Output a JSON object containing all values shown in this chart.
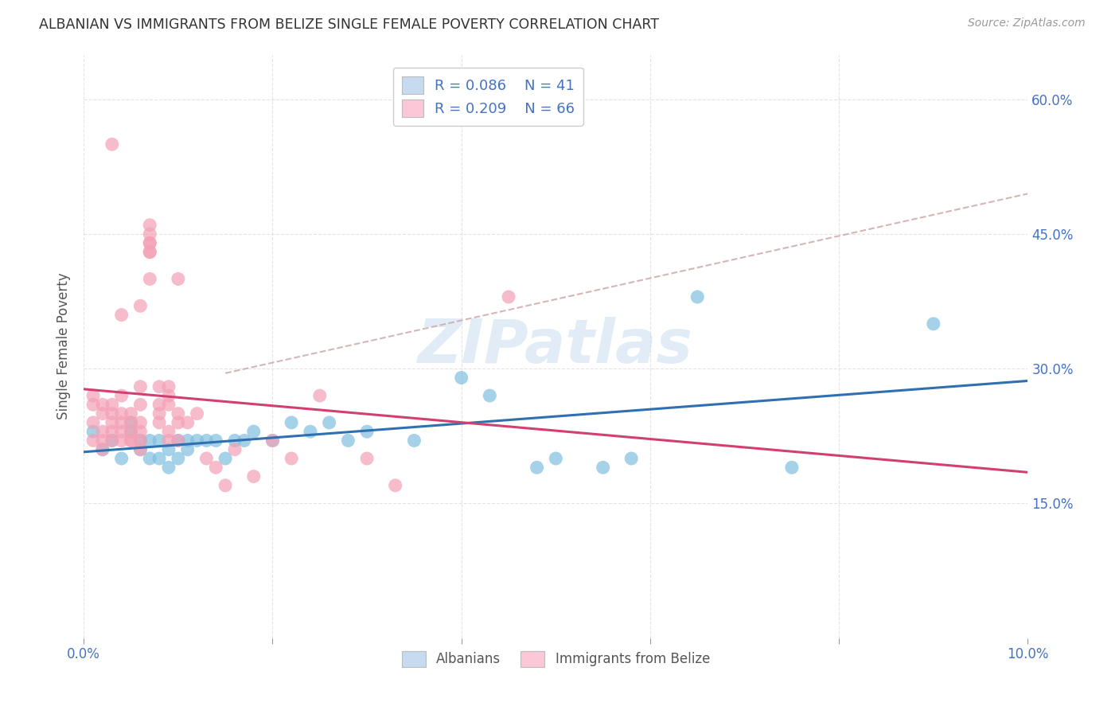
{
  "title": "ALBANIAN VS IMMIGRANTS FROM BELIZE SINGLE FEMALE POVERTY CORRELATION CHART",
  "source": "Source: ZipAtlas.com",
  "ylabel": "Single Female Poverty",
  "watermark": "ZIPatlas",
  "xlim": [
    0.0,
    0.1
  ],
  "ylim": [
    0.0,
    0.65
  ],
  "xticks": [
    0.0,
    0.02,
    0.04,
    0.06,
    0.08,
    0.1
  ],
  "xticklabels": [
    "0.0%",
    "",
    "",
    "",
    "",
    "10.0%"
  ],
  "yticks": [
    0.0,
    0.15,
    0.3,
    0.45,
    0.6
  ],
  "yticklabels_right": [
    "",
    "15.0%",
    "30.0%",
    "45.0%",
    "60.0%"
  ],
  "legend_labels": [
    "Albanians",
    "Immigrants from Belize"
  ],
  "legend_R": [
    "R = 0.086",
    "R = 0.209"
  ],
  "legend_N": [
    "N = 41",
    "N = 66"
  ],
  "blue_color": "#7fbfdf",
  "pink_color": "#f4a0b5",
  "blue_line_color": "#3070b0",
  "pink_line_color": "#d04070",
  "blue_fill": "#c6dbef",
  "pink_fill": "#fcc8d8",
  "albanians_x": [
    0.001,
    0.002,
    0.003,
    0.004,
    0.005,
    0.005,
    0.006,
    0.006,
    0.007,
    0.007,
    0.008,
    0.008,
    0.009,
    0.009,
    0.01,
    0.01,
    0.011,
    0.011,
    0.012,
    0.013,
    0.014,
    0.015,
    0.016,
    0.017,
    0.018,
    0.02,
    0.022,
    0.024,
    0.026,
    0.028,
    0.03,
    0.035,
    0.04,
    0.043,
    0.048,
    0.05,
    0.055,
    0.058,
    0.065,
    0.075,
    0.09
  ],
  "albanians_y": [
    0.23,
    0.21,
    0.22,
    0.2,
    0.23,
    0.24,
    0.22,
    0.21,
    0.22,
    0.2,
    0.22,
    0.2,
    0.19,
    0.21,
    0.2,
    0.22,
    0.22,
    0.21,
    0.22,
    0.22,
    0.22,
    0.2,
    0.22,
    0.22,
    0.23,
    0.22,
    0.24,
    0.23,
    0.24,
    0.22,
    0.23,
    0.22,
    0.29,
    0.27,
    0.19,
    0.2,
    0.19,
    0.2,
    0.38,
    0.19,
    0.35
  ],
  "belize_x": [
    0.001,
    0.001,
    0.001,
    0.001,
    0.002,
    0.002,
    0.002,
    0.002,
    0.002,
    0.003,
    0.003,
    0.003,
    0.003,
    0.003,
    0.004,
    0.004,
    0.004,
    0.004,
    0.004,
    0.005,
    0.005,
    0.005,
    0.005,
    0.005,
    0.006,
    0.006,
    0.006,
    0.006,
    0.006,
    0.006,
    0.007,
    0.007,
    0.007,
    0.007,
    0.007,
    0.007,
    0.008,
    0.008,
    0.008,
    0.008,
    0.009,
    0.009,
    0.009,
    0.009,
    0.009,
    0.01,
    0.01,
    0.01,
    0.011,
    0.012,
    0.013,
    0.014,
    0.015,
    0.016,
    0.018,
    0.02,
    0.022,
    0.025,
    0.03,
    0.033,
    0.003,
    0.004,
    0.006,
    0.007,
    0.01,
    0.045
  ],
  "belize_y": [
    0.22,
    0.24,
    0.27,
    0.26,
    0.21,
    0.22,
    0.26,
    0.23,
    0.25,
    0.22,
    0.23,
    0.25,
    0.24,
    0.26,
    0.27,
    0.22,
    0.24,
    0.25,
    0.23,
    0.22,
    0.23,
    0.25,
    0.24,
    0.22,
    0.28,
    0.24,
    0.22,
    0.26,
    0.23,
    0.21,
    0.44,
    0.43,
    0.45,
    0.43,
    0.44,
    0.46,
    0.28,
    0.26,
    0.25,
    0.24,
    0.28,
    0.27,
    0.22,
    0.23,
    0.26,
    0.24,
    0.25,
    0.22,
    0.24,
    0.25,
    0.2,
    0.19,
    0.17,
    0.21,
    0.18,
    0.22,
    0.2,
    0.27,
    0.2,
    0.17,
    0.55,
    0.36,
    0.37,
    0.4,
    0.4,
    0.38
  ]
}
